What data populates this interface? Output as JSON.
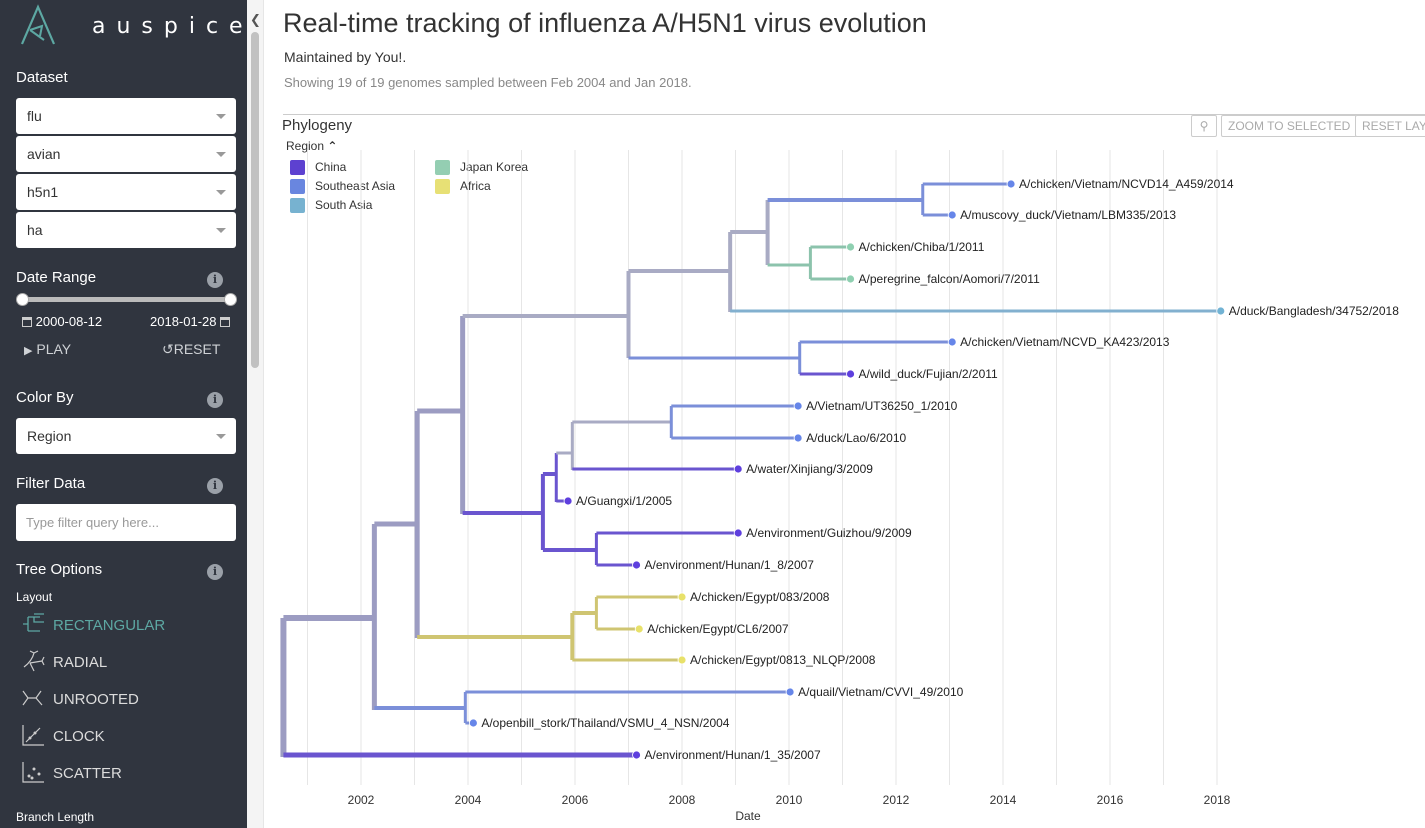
{
  "app": {
    "name": "auspice"
  },
  "sidebar": {
    "dataset": {
      "title": "Dataset",
      "selects": [
        "flu",
        "avian",
        "h5n1",
        "ha"
      ]
    },
    "date_range": {
      "title": "Date Range",
      "start": "2000-08-12",
      "end": "2018-01-28",
      "play_label": "PLAY",
      "reset_label": "RESET"
    },
    "color_by": {
      "title": "Color By",
      "value": "Region"
    },
    "filter": {
      "title": "Filter Data",
      "placeholder": "Type filter query here..."
    },
    "tree_options": {
      "title": "Tree Options",
      "layout_label": "Layout",
      "layouts": [
        "RECTANGULAR",
        "RADIAL",
        "UNROOTED",
        "CLOCK",
        "SCATTER"
      ],
      "selected_layout": "RECTANGULAR",
      "branch_length_label": "Branch Length"
    }
  },
  "main": {
    "title": "Real-time tracking of influenza A/H5N1 virus evolution",
    "maintainer": "Maintained by You!.",
    "summary": "Showing 19 of 19 genomes sampled between Feb 2004 and Jan 2018.",
    "panel_title": "Phylogeny",
    "toolbar": {
      "zoom_selected": "ZOOM TO SELECTED",
      "reset_layout": "RESET LAYO"
    },
    "legend": {
      "title": "Region",
      "items": [
        {
          "label": "China",
          "color": "#5e3fde"
        },
        {
          "label": "Southeast Asia",
          "color": "#6686e9"
        },
        {
          "label": "South Asia",
          "color": "#72b3d4"
        },
        {
          "label": "Japan Korea",
          "color": "#8fd0b1"
        },
        {
          "label": "Africa",
          "color": "#e8e16a"
        }
      ]
    },
    "x_axis": {
      "label": "Date",
      "ticks": [
        "2002",
        "2004",
        "2006",
        "2008",
        "2010",
        "2012",
        "2014",
        "2016",
        "2018"
      ]
    },
    "tips": [
      {
        "name": "A/chicken/Vietnam/NCVD14_A459/2014",
        "date": 2014.15,
        "region": "Southeast Asia"
      },
      {
        "name": "A/muscovy_duck/Vietnam/LBM335/2013",
        "date": 2013.05,
        "region": "Southeast Asia"
      },
      {
        "name": "A/chicken/Chiba/1/2011",
        "date": 2011.15,
        "region": "Japan Korea"
      },
      {
        "name": "A/peregrine_falcon/Aomori/7/2011",
        "date": 2011.15,
        "region": "Japan Korea"
      },
      {
        "name": "A/duck/Bangladesh/34752/2018",
        "date": 2018.07,
        "region": "South Asia"
      },
      {
        "name": "A/chicken/Vietnam/NCVD_KA423/2013",
        "date": 2013.05,
        "region": "Southeast Asia"
      },
      {
        "name": "A/wild_duck/Fujian/2/2011",
        "date": 2011.15,
        "region": "China"
      },
      {
        "name": "A/Vietnam/UT36250_1/2010",
        "date": 2010.17,
        "region": "Southeast Asia"
      },
      {
        "name": "A/duck/Lao/6/2010",
        "date": 2010.17,
        "region": "Southeast Asia"
      },
      {
        "name": "A/water/Xinjiang/3/2009",
        "date": 2009.05,
        "region": "China"
      },
      {
        "name": "A/Guangxi/1/2005",
        "date": 2005.87,
        "region": "China"
      },
      {
        "name": "A/environment/Guizhou/9/2009",
        "date": 2009.05,
        "region": "China"
      },
      {
        "name": "A/environment/Hunan/1_8/2007",
        "date": 2007.15,
        "region": "China"
      },
      {
        "name": "A/chicken/Egypt/083/2008",
        "date": 2008.0,
        "region": "Africa"
      },
      {
        "name": "A/chicken/Egypt/CL6/2007",
        "date": 2007.2,
        "region": "Africa"
      },
      {
        "name": "A/chicken/Egypt/0813_NLQP/2008",
        "date": 2008.0,
        "region": "Africa"
      },
      {
        "name": "A/quail/Vietnam/CVVI_49/2010",
        "date": 2010.02,
        "region": "Southeast Asia"
      },
      {
        "name": "A/openbill_stork/Thailand/VSMU_4_NSN/2004",
        "date": 2004.1,
        "region": "Southeast Asia"
      },
      {
        "name": "A/environment/Hunan/1_35/2007",
        "date": 2007.15,
        "region": "China"
      }
    ]
  }
}
